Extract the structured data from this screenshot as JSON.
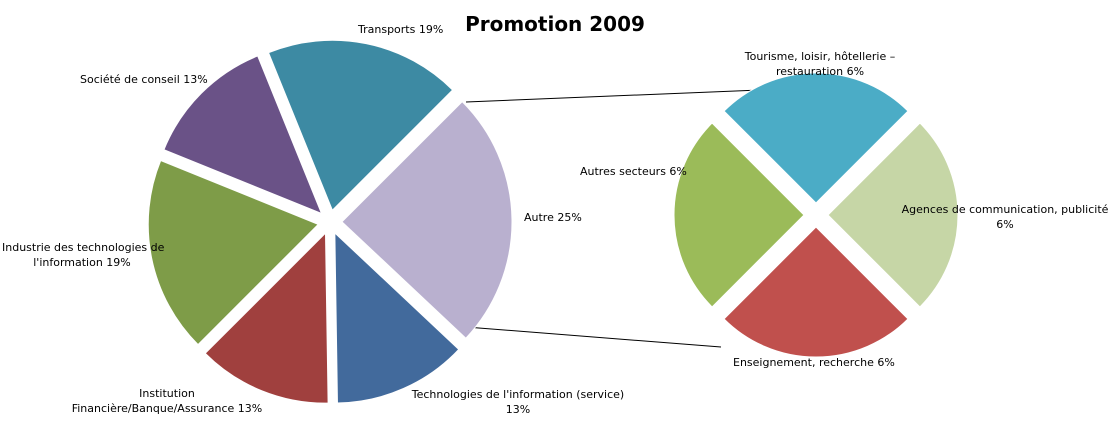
{
  "chart_data": {
    "type": "pie",
    "title": "Promotion 2009",
    "main_pie": {
      "slices": [
        {
          "key": "autre",
          "name": "Autre",
          "value": 25,
          "label": "Autre 25%",
          "color": "#B9B0CF"
        },
        {
          "key": "techserv",
          "name": "Technologies de l'information (service)",
          "value": 13,
          "label": "Technologies de l'information (service) 13%",
          "color": "#426A9C"
        },
        {
          "key": "finance",
          "name": "Institution Financière/Banque/Assurance",
          "value": 13,
          "label": "Institution Financière/Banque/Assurance 13%",
          "color": "#A0403E"
        },
        {
          "key": "industrie",
          "name": "Industrie des technologies de l'information",
          "value": 19,
          "label": "Industrie des technologies de l'information 19%",
          "color": "#7E9C48"
        },
        {
          "key": "conseil",
          "name": "Société de conseil",
          "value": 13,
          "label": "Société de conseil 13%",
          "color": "#6A5287"
        },
        {
          "key": "transports",
          "name": "Transports",
          "value": 19,
          "label": "Transports 19%",
          "color": "#3D8AA3"
        }
      ]
    },
    "secondary_pie": {
      "source": "Autre",
      "slices": [
        {
          "key": "agences",
          "name": "Agences de communication,  publicité",
          "value": 6,
          "label": "Agences de communication,  publicité 6%",
          "color": "#C6D6A6"
        },
        {
          "key": "enseign",
          "name": "Enseignement, recherche",
          "value": 6,
          "label": "Enseignement, recherche 6%",
          "color": "#C0504D"
        },
        {
          "key": "autres",
          "name": "Autres secteurs",
          "value": 6,
          "label": "Autres secteurs 6%",
          "color": "#9BBB59"
        },
        {
          "key": "tourisme",
          "name": "Tourisme, loisir, hôtellerie – restauration",
          "value": 6,
          "label": "Tourisme, loisir, hôtellerie – restauration 6%",
          "color": "#4BACC6"
        }
      ]
    },
    "legend": "none",
    "data_labels": "outside"
  },
  "labels": {
    "transports": "Transports 19%",
    "conseil": "Société de conseil 13%",
    "industrie_1": "Industrie des technologies de",
    "industrie_2": "l'information 19%",
    "finance_1": "Institution",
    "finance_2": "Financière/Banque/Assurance 13%",
    "techserv_1": "Technologies de l'information (service)",
    "techserv_2": "13%",
    "autre": "Autre 25%",
    "tourisme_1": "Tourisme, loisir, hôtellerie –",
    "tourisme_2": "restauration 6%",
    "autres": "Autres secteurs 6%",
    "agences_1": "Agences de communication,  publicité",
    "agences_2": "6%",
    "enseign": "Enseignement, recherche 6%"
  }
}
